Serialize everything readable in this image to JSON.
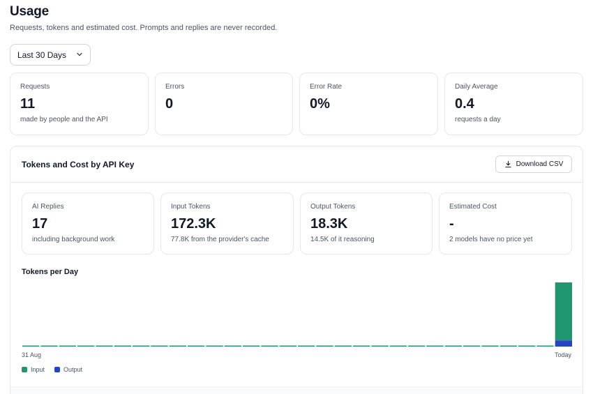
{
  "header": {
    "title": "Usage",
    "subtitle": "Requests, tokens and estimated cost. Prompts and replies are never recorded."
  },
  "range": {
    "selected": "Last 30 Days"
  },
  "stats": [
    {
      "label": "Requests",
      "value": "11",
      "note": "made by people and the API"
    },
    {
      "label": "Errors",
      "value": "0",
      "note": ""
    },
    {
      "label": "Error Rate",
      "value": "0%",
      "note": ""
    },
    {
      "label": "Daily Average",
      "value": "0.4",
      "note": "requests a day"
    }
  ],
  "tokens_panel": {
    "title": "Tokens and Cost by API Key",
    "download_label": "Download CSV",
    "cards": [
      {
        "label": "AI Replies",
        "value": "17",
        "note": "including background work"
      },
      {
        "label": "Input Tokens",
        "value": "172.3K",
        "note": "77.8K from the provider's cache"
      },
      {
        "label": "Output Tokens",
        "value": "18.3K",
        "note": "14.5K of it reasoning"
      },
      {
        "label": "Estimated Cost",
        "value": "-",
        "note": "2 models have no price yet"
      }
    ]
  },
  "colors": {
    "input": "#1f9670",
    "output": "#2345c4"
  },
  "chart_data": {
    "type": "bar",
    "title": "Tokens per Day",
    "stacked": true,
    "x_start_label": "31 Aug",
    "x_end_label": "Today",
    "days": 30,
    "series": [
      {
        "name": "Input",
        "values": [
          0,
          0,
          0,
          0,
          0,
          0,
          0,
          0,
          0,
          0,
          0,
          0,
          0,
          0,
          0,
          0,
          0,
          0,
          0,
          0,
          0,
          0,
          0,
          0,
          0,
          0,
          0,
          0,
          0,
          172300
        ]
      },
      {
        "name": "Output",
        "values": [
          0,
          0,
          0,
          0,
          0,
          0,
          0,
          0,
          0,
          0,
          0,
          0,
          0,
          0,
          0,
          0,
          0,
          0,
          0,
          0,
          0,
          0,
          0,
          0,
          0,
          0,
          0,
          0,
          0,
          18300
        ]
      }
    ],
    "legend_position": "bottom-left",
    "grid": false
  }
}
